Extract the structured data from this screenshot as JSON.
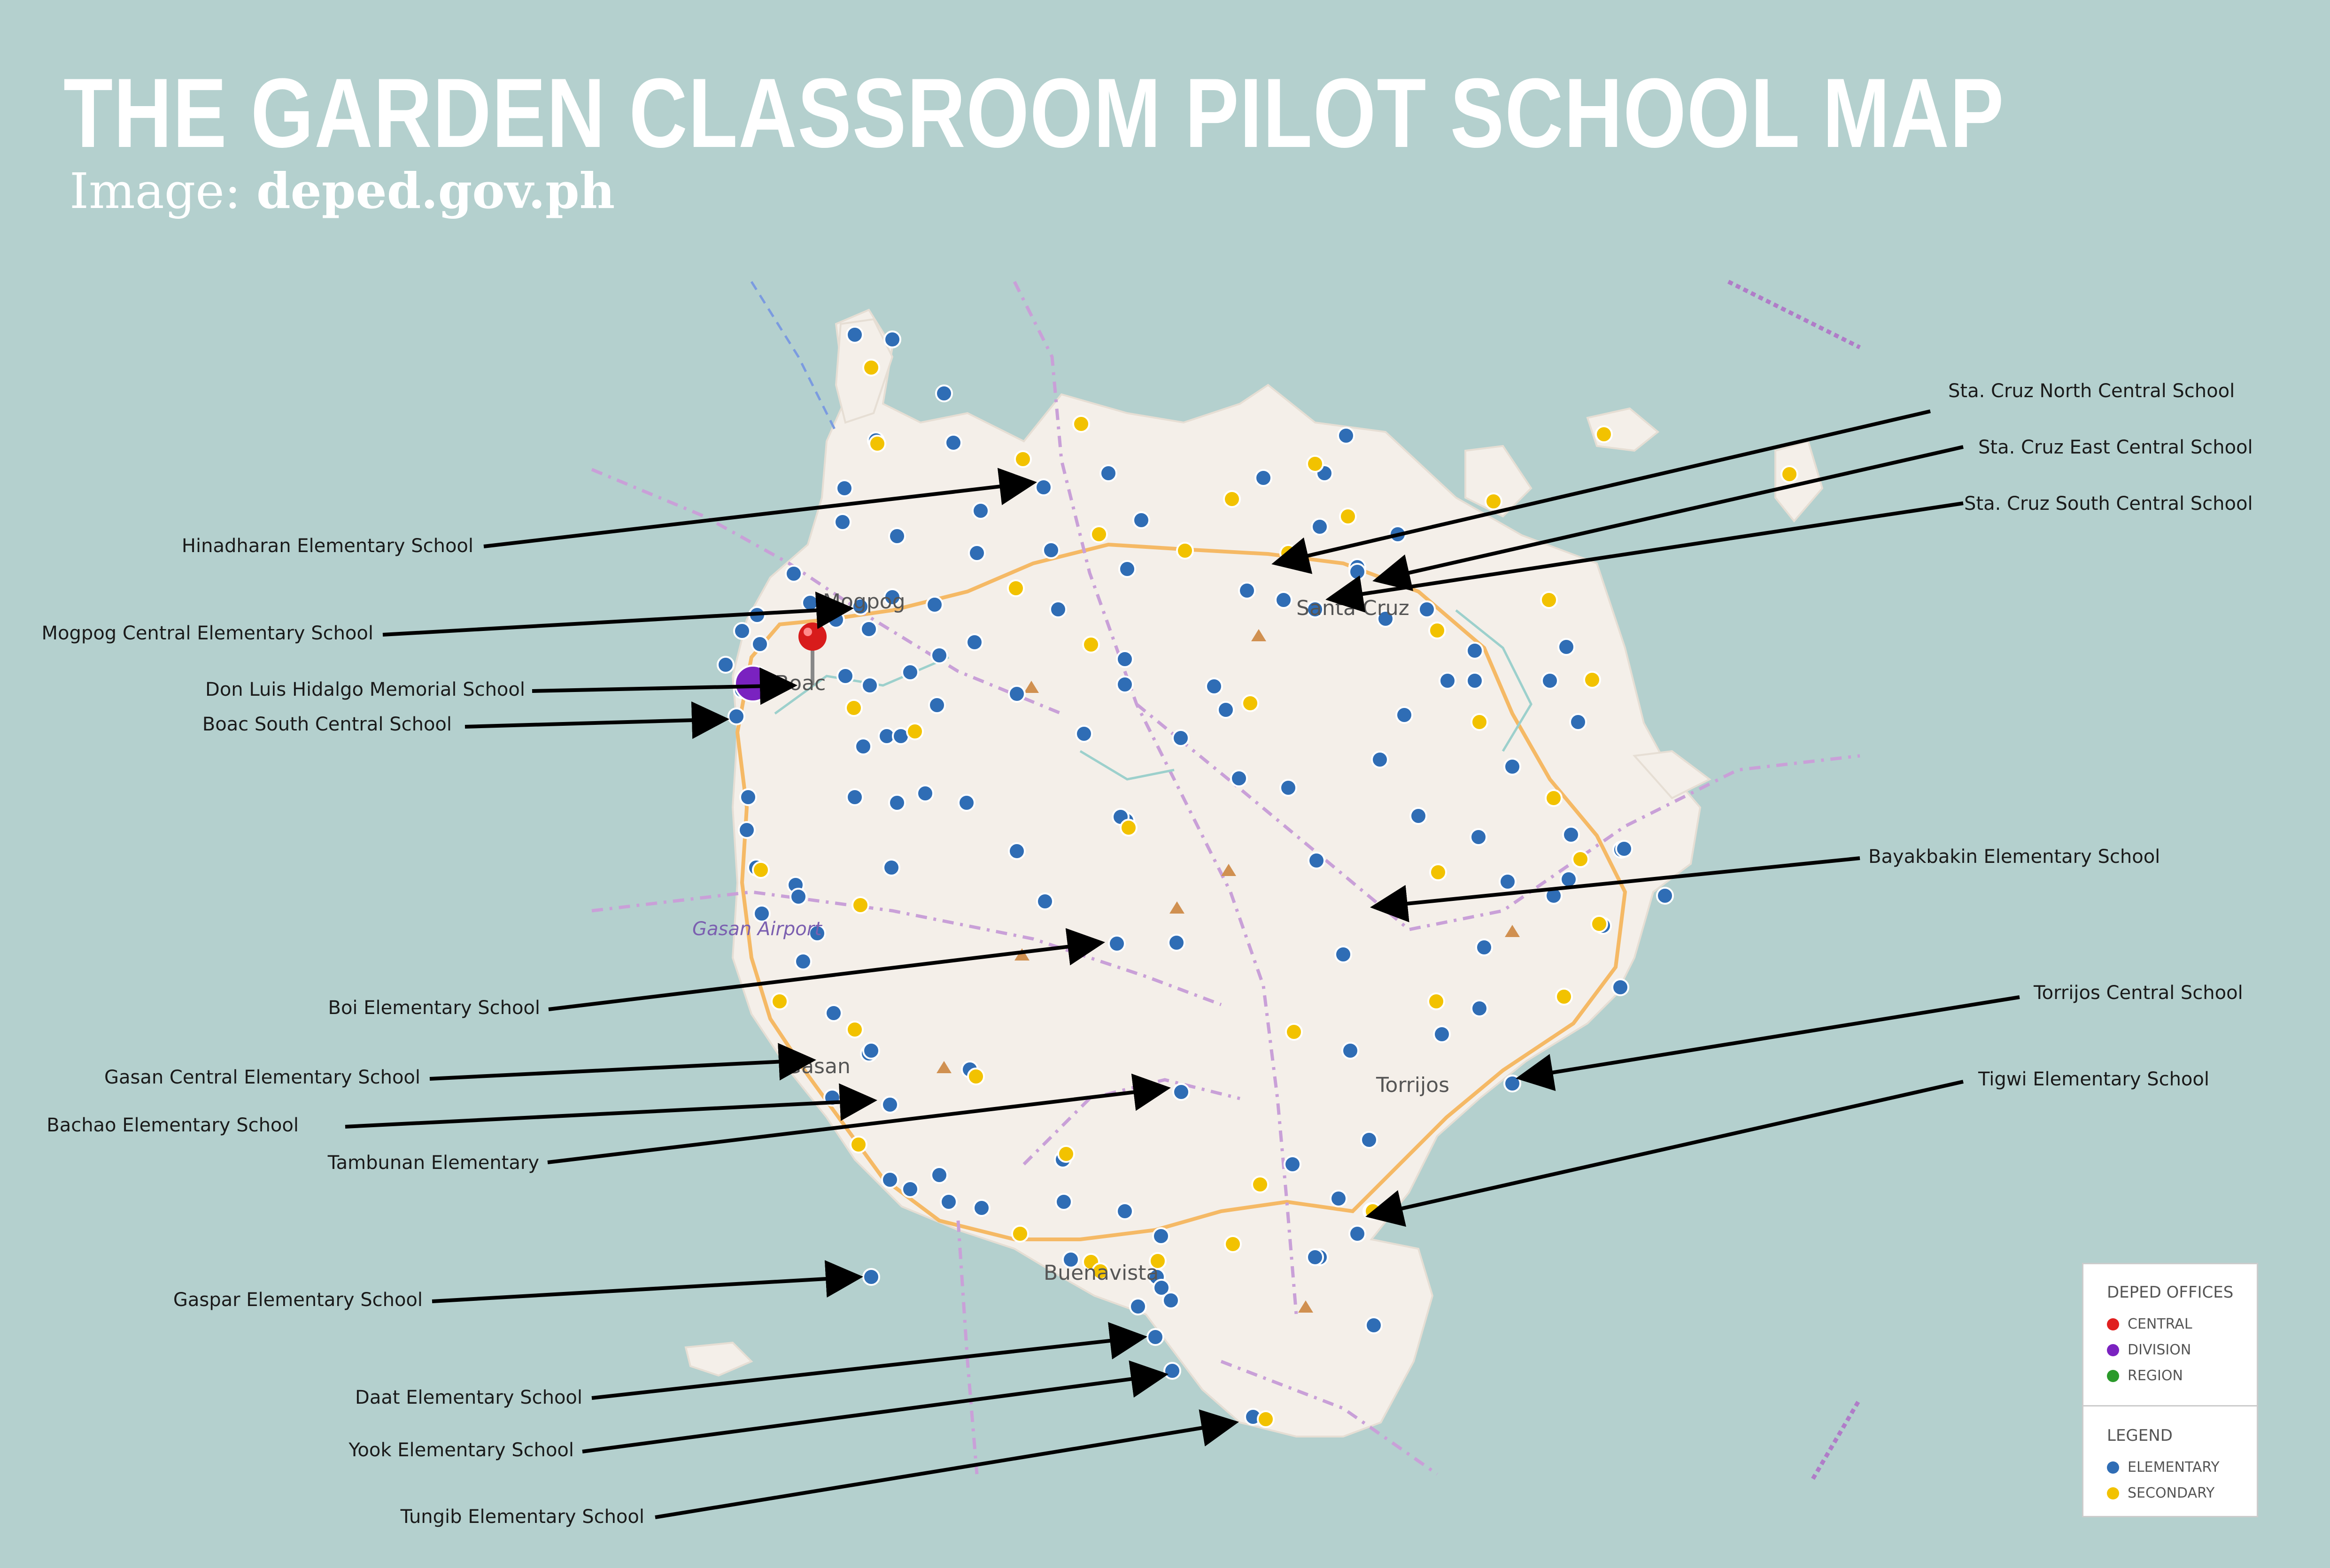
{
  "header": {
    "title": "THE GARDEN CLASSROOM PILOT SCHOOL MAP",
    "credit_prefix": "Image:",
    "credit_source": "deped.gov.ph"
  },
  "map": {
    "towns": [
      "Mogpog",
      "Boac",
      "Santa Cruz",
      "Gasan",
      "Torrijos",
      "Buenavista"
    ],
    "airport": "Gasan Airport",
    "callouts": [
      "Hinadharan Elementary School",
      "Mogpog Central Elementary School",
      "Don Luis Hidalgo Memorial School",
      "Boac South Central School",
      "Boi Elementary School",
      "Gasan Central Elementary School",
      "Bachao Elementary School",
      "Tambunan Elementary",
      "Gaspar Elementary School",
      "Daat Elementary School",
      "Yook Elementary School",
      "Tungib Elementary School",
      "Sta. Cruz North Central School",
      "Sta. Cruz East Central School",
      "Sta. Cruz South Central School",
      "Bayakbakin Elementary School",
      "Torrijos  Central School",
      "Tigwi Elementary School"
    ]
  },
  "legend": {
    "offices_title": "DEPED OFFICES",
    "offices": [
      {
        "label": "CENTRAL",
        "color": "#e02020"
      },
      {
        "label": "DIVISION",
        "color": "#7a22c0"
      },
      {
        "label": "REGION",
        "color": "#2a9a2a"
      }
    ],
    "legend_title": "LEGEND",
    "types": [
      {
        "label": "ELEMENTARY",
        "color": "#2f6db5"
      },
      {
        "label": "SECONDARY",
        "color": "#f2c200"
      }
    ]
  }
}
